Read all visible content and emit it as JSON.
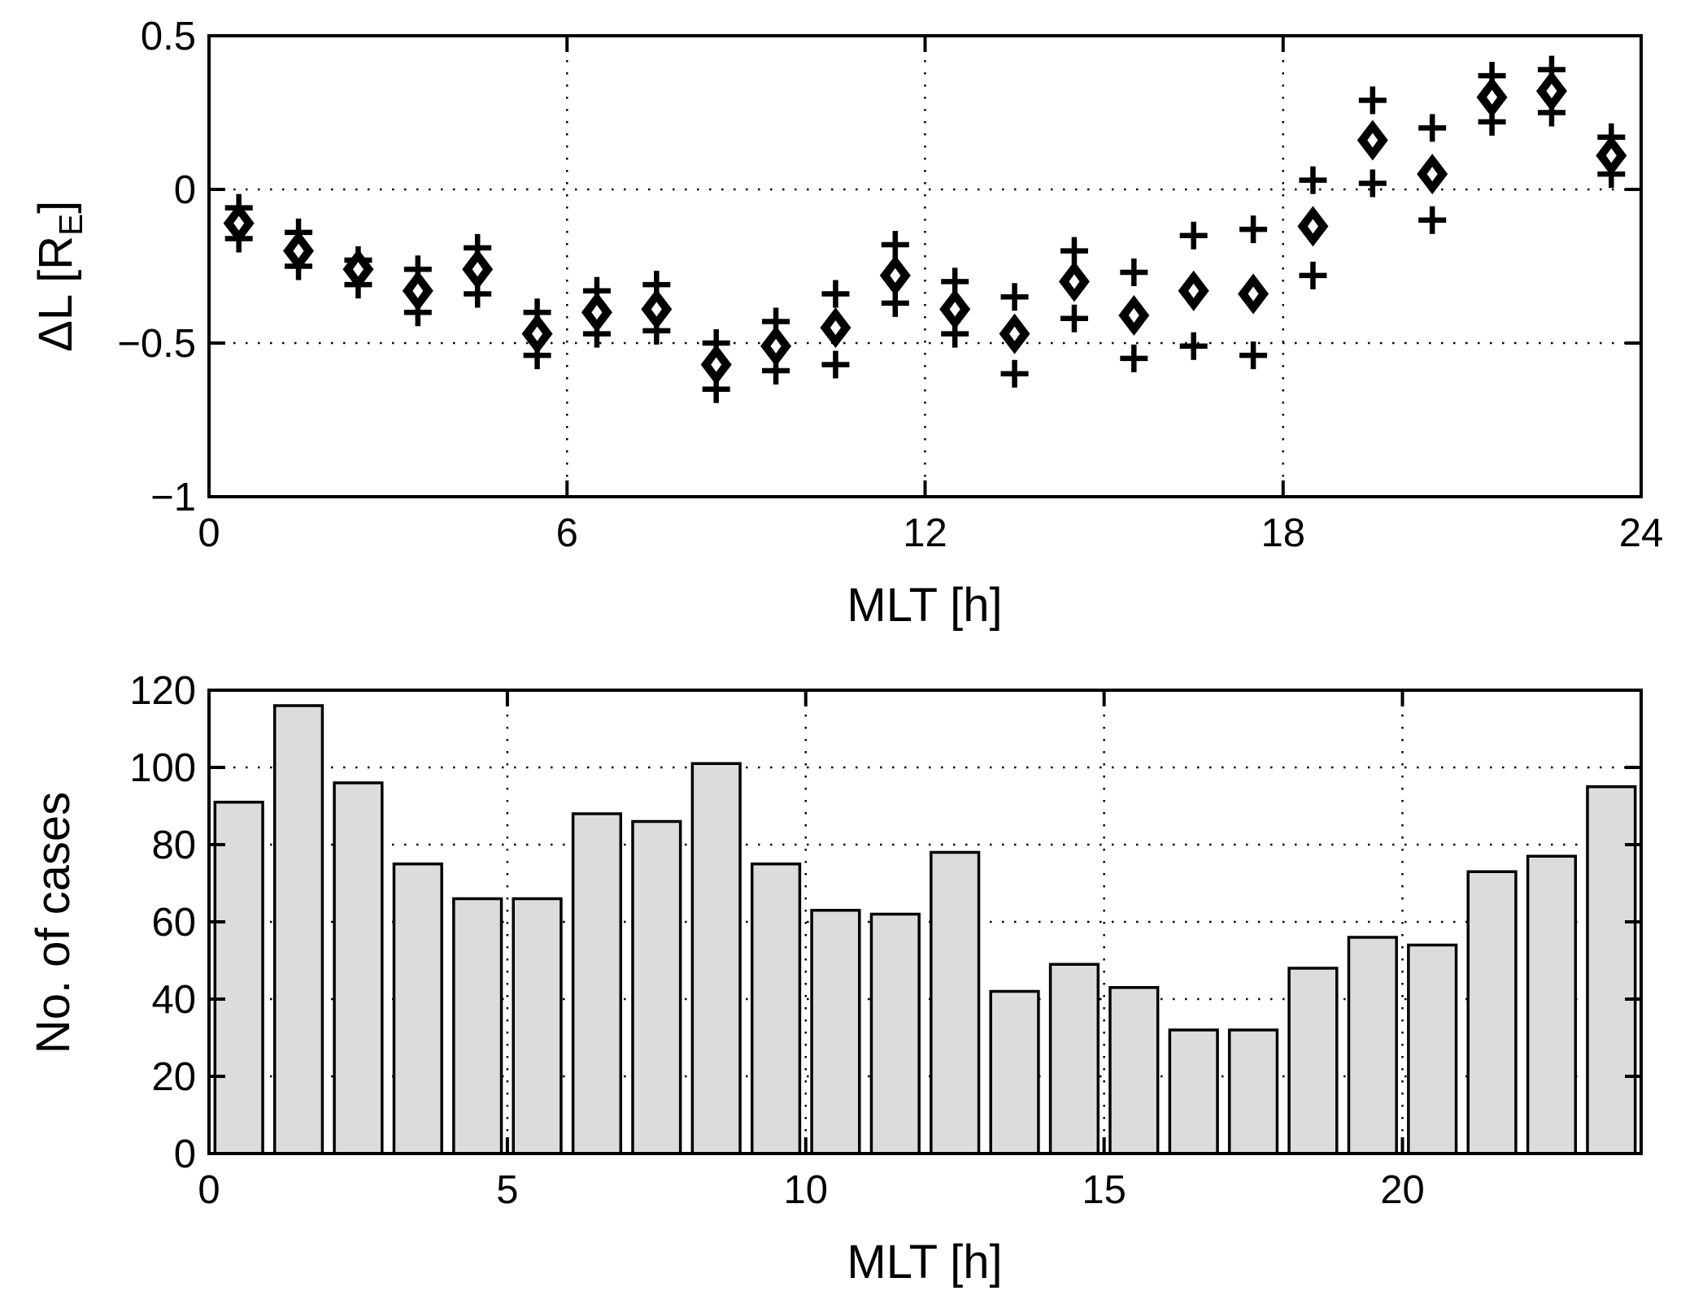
{
  "figure": {
    "background": "#ffffff",
    "foreground": "#000000",
    "bar_fill": "#dcdcdc"
  },
  "chart_data": [
    {
      "type": "scatter",
      "title": "",
      "xlabel": "MLT [h]",
      "ylabel": {
        "prefix": "ΔL [R",
        "sub": "E",
        "suffix": "]"
      },
      "xlim": [
        0,
        24
      ],
      "ylim": [
        -1,
        0.5
      ],
      "xticks": [
        0,
        6,
        12,
        18,
        24
      ],
      "xtick_labels": [
        "0",
        "6",
        "12",
        "18",
        "24"
      ],
      "yticks": [
        0.5,
        0,
        -0.5,
        -1
      ],
      "ytick_labels": [
        "0.5",
        "0",
        "−0.5",
        "−1"
      ],
      "grid": true,
      "legend": "none",
      "x": [
        0.5,
        1.5,
        2.5,
        3.5,
        4.5,
        5.5,
        6.5,
        7.5,
        8.5,
        9.5,
        10.5,
        11.5,
        12.5,
        13.5,
        14.5,
        15.5,
        16.5,
        17.5,
        18.5,
        19.5,
        20.5,
        21.5,
        22.5,
        23.5
      ],
      "series": [
        {
          "name": "median-delta-l",
          "marker": "diamond",
          "values": [
            -0.11,
            -0.2,
            -0.26,
            -0.33,
            -0.26,
            -0.47,
            -0.4,
            -0.39,
            -0.57,
            -0.51,
            -0.45,
            -0.28,
            -0.39,
            -0.47,
            -0.3,
            -0.41,
            -0.33,
            -0.34,
            -0.12,
            0.16,
            0.05,
            0.3,
            0.32,
            0.11
          ]
        },
        {
          "name": "upper-plus",
          "marker": "plus",
          "values": [
            -0.06,
            -0.14,
            -0.23,
            -0.26,
            -0.19,
            -0.4,
            -0.33,
            -0.31,
            -0.5,
            -0.43,
            -0.34,
            -0.18,
            -0.3,
            -0.35,
            -0.2,
            -0.27,
            -0.15,
            -0.13,
            0.03,
            0.29,
            0.2,
            0.37,
            0.39,
            0.17
          ]
        },
        {
          "name": "lower-plus",
          "marker": "plus",
          "values": [
            -0.16,
            -0.25,
            -0.31,
            -0.4,
            -0.34,
            -0.54,
            -0.47,
            -0.46,
            -0.65,
            -0.59,
            -0.57,
            -0.37,
            -0.47,
            -0.6,
            -0.42,
            -0.55,
            -0.51,
            -0.54,
            -0.28,
            0.02,
            -0.1,
            0.22,
            0.25,
            0.05
          ]
        }
      ]
    },
    {
      "type": "bar",
      "title": "",
      "xlabel": "MLT [h]",
      "ylabel": "No. of cases",
      "xlim": [
        0,
        24
      ],
      "ylim": [
        0,
        120
      ],
      "xticks": [
        0,
        5,
        10,
        15,
        20
      ],
      "xtick_labels": [
        "0",
        "5",
        "10",
        "15",
        "20"
      ],
      "yticks": [
        0,
        20,
        40,
        60,
        80,
        100,
        120
      ],
      "ytick_labels": [
        "0",
        "20",
        "40",
        "60",
        "80",
        "100",
        "120"
      ],
      "grid": true,
      "legend": "none",
      "bar_width": 0.8,
      "categories": [
        0.5,
        1.5,
        2.5,
        3.5,
        4.5,
        5.5,
        6.5,
        7.5,
        8.5,
        9.5,
        10.5,
        11.5,
        12.5,
        13.5,
        14.5,
        15.5,
        16.5,
        17.5,
        18.5,
        19.5,
        20.5,
        21.5,
        22.5,
        23.5
      ],
      "values": [
        91,
        116,
        96,
        75,
        66,
        66,
        88,
        86,
        101,
        75,
        63,
        62,
        78,
        42,
        49,
        43,
        32,
        32,
        48,
        56,
        54,
        73,
        77,
        95
      ]
    }
  ]
}
